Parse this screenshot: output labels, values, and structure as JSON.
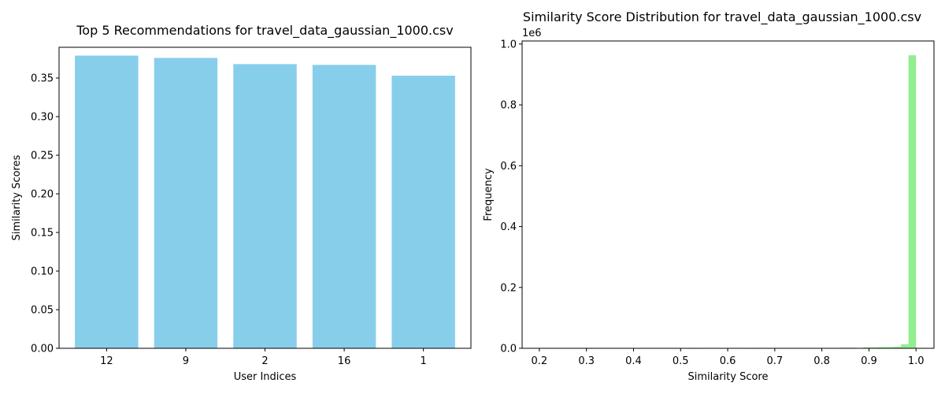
{
  "chart_data": [
    {
      "type": "bar",
      "title": "Top 5 Recommendations for travel_data_gaussian_1000.csv",
      "xlabel": "User Indices",
      "ylabel": "Similarity Scores",
      "categories": [
        "12",
        "9",
        "2",
        "16",
        "1"
      ],
      "values": [
        0.379,
        0.376,
        0.368,
        0.367,
        0.353
      ],
      "ylim": [
        0,
        0.3898
      ],
      "yticks": [
        "0.00",
        "0.05",
        "0.10",
        "0.15",
        "0.20",
        "0.25",
        "0.30",
        "0.35"
      ],
      "color": "#87ceeb",
      "grid": false
    },
    {
      "type": "bar",
      "subtype": "histogram",
      "title": "Similarity Score Distribution for travel_data_gaussian_1000.csv",
      "xlabel": "Similarity Score",
      "ylabel": "Frequency",
      "y_scale_label": "1e6",
      "xlim": [
        0.1634,
        1.0381
      ],
      "ylim": [
        0,
        1.01
      ],
      "xticks": [
        "0.2",
        "0.3",
        "0.4",
        "0.5",
        "0.6",
        "0.7",
        "0.8",
        "0.9",
        "1.0"
      ],
      "yticks": [
        "0.0",
        "0.2",
        "0.4",
        "0.6",
        "0.8",
        "1.0"
      ],
      "bin_range": [
        0.2,
        1.0
      ],
      "bins": 50,
      "values": [
        0,
        0,
        0,
        0,
        0,
        0,
        0.001,
        0,
        0,
        0,
        0,
        0,
        0,
        0,
        0,
        0,
        0,
        0,
        0,
        0,
        0.001,
        0,
        0,
        0,
        0,
        0,
        0,
        0,
        0.001,
        0,
        0,
        0,
        0,
        0,
        0,
        0,
        0,
        0,
        0,
        0,
        0.002,
        0.002,
        0,
        0.003,
        0.003,
        0.004,
        0.004,
        0.005,
        0.013,
        0.963
      ],
      "color": "#90ee90",
      "grid": false
    }
  ]
}
